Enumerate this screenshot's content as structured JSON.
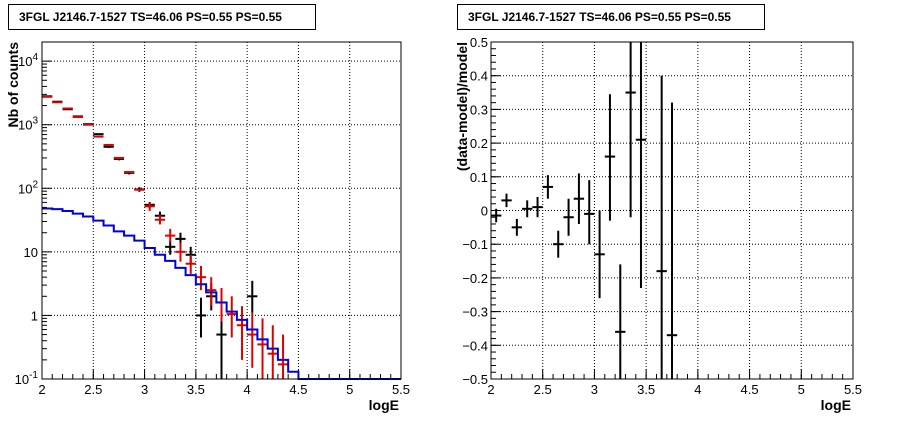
{
  "chart_data": [
    {
      "type": "step",
      "title": "3FGL J2146.7-1527 TS=46.06 PS=0.55 PS=0.55",
      "xlabel": "logE",
      "ylabel": "Nb of counts",
      "xlim": [
        2,
        5.5
      ],
      "ylim": [
        0.1,
        20000
      ],
      "yscale": "log",
      "grid": true,
      "x_ticks": [
        "2",
        "2.5",
        "3",
        "3.5",
        "4",
        "4.5",
        "5",
        "5.5"
      ],
      "y_ticks": [
        {
          "value": 0.1,
          "base": "10",
          "exp": "-1"
        },
        {
          "value": 1,
          "base": "1",
          "exp": ""
        },
        {
          "value": 10,
          "base": "10",
          "exp": ""
        },
        {
          "value": 100,
          "base": "10",
          "exp": "2"
        },
        {
          "value": 1000,
          "base": "10",
          "exp": "3"
        },
        {
          "value": 10000,
          "base": "10",
          "exp": "4"
        }
      ],
      "bin_width": 0.1,
      "series": [
        {
          "kind": "data",
          "color": "#000000",
          "points": [
            [
              2.05,
              2800,
              2800,
              2800
            ],
            [
              2.15,
              2300,
              2300,
              2300
            ],
            [
              2.25,
              1750,
              1750,
              1750
            ],
            [
              2.35,
              1350,
              1350,
              1350
            ],
            [
              2.45,
              1020,
              1020,
              1020
            ],
            [
              2.55,
              710,
              690,
              730
            ],
            [
              2.65,
              450,
              430,
              470
            ],
            [
              2.75,
              290,
              275,
              305
            ],
            [
              2.85,
              175,
              165,
              185
            ],
            [
              2.95,
              96,
              88,
              104
            ],
            [
              3.05,
              55,
              49,
              61
            ],
            [
              3.15,
              37,
              32,
              43
            ],
            [
              3.25,
              12,
              9,
              15
            ],
            [
              3.35,
              16,
              12,
              20
            ],
            [
              3.45,
              9,
              6.5,
              12
            ],
            [
              3.55,
              1.0,
              0.45,
              1.9
            ],
            [
              3.65,
              2.0,
              1.2,
              3.2
            ],
            [
              3.75,
              0.5,
              0.1,
              1.1
            ],
            [
              4.05,
              2.0,
              1.1,
              3.5
            ]
          ]
        },
        {
          "kind": "model",
          "color": "#e00000",
          "points": [
            [
              2.05,
              2750,
              2750,
              2750
            ],
            [
              2.15,
              2250,
              2250,
              2250
            ],
            [
              2.25,
              1800,
              1800,
              1800
            ],
            [
              2.35,
              1320,
              1320,
              1320
            ],
            [
              2.45,
              1000,
              1000,
              1000
            ],
            [
              2.55,
              650,
              650,
              650
            ],
            [
              2.65,
              480,
              480,
              480
            ],
            [
              2.75,
              300,
              300,
              300
            ],
            [
              2.85,
              180,
              180,
              180
            ],
            [
              2.95,
              95,
              95,
              95
            ],
            [
              3.05,
              52,
              44,
              60
            ],
            [
              3.15,
              32,
              27,
              38
            ],
            [
              3.25,
              18,
              14,
              23
            ],
            [
              3.35,
              10,
              7,
              14
            ],
            [
              3.45,
              6.5,
              4.5,
              9
            ],
            [
              3.55,
              4.0,
              2.5,
              6
            ],
            [
              3.65,
              2.5,
              1.4,
              4
            ],
            [
              3.75,
              1.6,
              0.8,
              2.7
            ],
            [
              3.85,
              1.05,
              0.45,
              2.0
            ],
            [
              3.95,
              0.7,
              0.2,
              1.4
            ],
            [
              4.05,
              0.5,
              0.15,
              1.1
            ],
            [
              4.15,
              0.35,
              0.1,
              0.9
            ],
            [
              4.25,
              0.25,
              0.1,
              0.7
            ],
            [
              4.35,
              0.17,
              0.1,
              0.5
            ]
          ]
        },
        {
          "kind": "background",
          "color": "#0000dd",
          "steps": [
            [
              2.0,
              48
            ],
            [
              2.1,
              47
            ],
            [
              2.2,
              44
            ],
            [
              2.3,
              40
            ],
            [
              2.4,
              36
            ],
            [
              2.5,
              31
            ],
            [
              2.6,
              26
            ],
            [
              2.7,
              21
            ],
            [
              2.8,
              18
            ],
            [
              2.9,
              15
            ],
            [
              3.0,
              11.5
            ],
            [
              3.1,
              9
            ],
            [
              3.2,
              7.2
            ],
            [
              3.3,
              5.6
            ],
            [
              3.4,
              4.3
            ],
            [
              3.5,
              3.1
            ],
            [
              3.6,
              2.3
            ],
            [
              3.7,
              1.6
            ],
            [
              3.8,
              1.15
            ],
            [
              3.9,
              0.85
            ],
            [
              4.0,
              0.6
            ],
            [
              4.1,
              0.42
            ],
            [
              4.2,
              0.3
            ],
            [
              4.3,
              0.2
            ],
            [
              4.4,
              0.13
            ],
            [
              4.5,
              0.1
            ],
            [
              5.5,
              0.1
            ]
          ]
        }
      ]
    },
    {
      "type": "scatter",
      "title": "3FGL J2146.7-1527 TS=46.06 PS=0.55 PS=0.55",
      "xlabel": "logE",
      "ylabel": "(data-model)/model",
      "xlim": [
        2,
        5.5
      ],
      "ylim": [
        -0.5,
        0.5
      ],
      "grid": true,
      "x_ticks": [
        "2",
        "2.5",
        "3",
        "3.5",
        "4",
        "4.5",
        "5",
        "5.5"
      ],
      "y_ticks": [
        "-0.5",
        "-0.4",
        "-0.3",
        "-0.2",
        "-0.1",
        "0",
        "0.1",
        "0.2",
        "0.3",
        "0.4",
        "0.5"
      ],
      "bin_width": 0.1,
      "series": [
        {
          "kind": "residual",
          "color": "#000000",
          "points": [
            [
              2.05,
              -0.015,
              -0.035,
              0.005
            ],
            [
              2.15,
              0.03,
              0.01,
              0.05
            ],
            [
              2.25,
              -0.05,
              -0.075,
              -0.025
            ],
            [
              2.35,
              0.005,
              -0.02,
              0.03
            ],
            [
              2.45,
              0.01,
              -0.02,
              0.04
            ],
            [
              2.55,
              0.07,
              0.035,
              0.105
            ],
            [
              2.65,
              -0.1,
              -0.14,
              -0.06
            ],
            [
              2.75,
              -0.02,
              -0.075,
              0.035
            ],
            [
              2.85,
              0.035,
              -0.04,
              0.11
            ],
            [
              2.95,
              -0.01,
              -0.1,
              0.09
            ],
            [
              3.05,
              -0.13,
              -0.26,
              0.0
            ],
            [
              3.15,
              0.16,
              -0.03,
              0.345
            ],
            [
              3.25,
              -0.36,
              -0.5,
              -0.16
            ],
            [
              3.35,
              0.35,
              -0.02,
              0.5
            ],
            [
              3.45,
              0.21,
              -0.23,
              0.5
            ],
            [
              3.65,
              -0.18,
              -0.5,
              0.4
            ],
            [
              3.75,
              -0.37,
              -0.5,
              0.32
            ]
          ]
        }
      ]
    }
  ]
}
